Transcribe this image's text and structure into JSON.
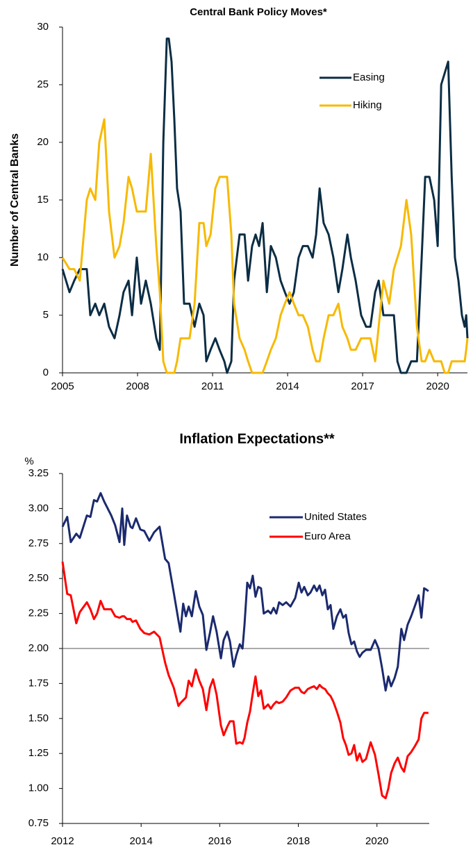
{
  "chart_data": [
    {
      "type": "line",
      "title": "Central Bank Policy Moves*",
      "ylabel": "Number of Central Banks",
      "x": [
        2005.0,
        2005.28,
        2005.47,
        2005.69,
        2005.97,
        2006.11,
        2006.31,
        2006.47,
        2006.67,
        2006.86,
        2007.08,
        2007.28,
        2007.44,
        2007.64,
        2007.78,
        2007.97,
        2008.14,
        2008.33,
        2008.53,
        2008.75,
        2008.89,
        2009.03,
        2009.17,
        2009.25,
        2009.36,
        2009.47,
        2009.58,
        2009.72,
        2009.86,
        2010.08,
        2010.28,
        2010.47,
        2010.64,
        2010.75,
        2010.92,
        2011.11,
        2011.28,
        2011.47,
        2011.58,
        2011.75,
        2011.86,
        2012.08,
        2012.28,
        2012.42,
        2012.58,
        2012.72,
        2012.86,
        2013.0,
        2013.17,
        2013.33,
        2013.53,
        2013.72,
        2013.89,
        2014.08,
        2014.25,
        2014.44,
        2014.61,
        2014.81,
        2015.0,
        2015.14,
        2015.28,
        2015.44,
        2015.64,
        2015.83,
        2016.03,
        2016.19,
        2016.39,
        2016.53,
        2016.72,
        2016.94,
        2017.14,
        2017.31,
        2017.5,
        2017.64,
        2017.83,
        2018.06,
        2018.25,
        2018.39,
        2018.53,
        2018.75,
        2018.94,
        2019.17,
        2019.36,
        2019.5,
        2019.67,
        2019.86,
        2020.0,
        2020.14,
        2020.28,
        2020.42,
        2020.56,
        2020.69,
        2020.83,
        2020.97,
        2021.08,
        2021.14,
        2021.19
      ],
      "series": [
        {
          "name": "Easing",
          "color": "#0b2d44",
          "values": [
            9,
            7,
            8,
            9,
            9,
            5,
            6,
            5,
            6,
            4,
            3,
            5,
            7,
            8,
            5,
            10,
            6,
            8,
            6,
            3,
            2,
            20,
            29,
            29,
            27,
            22,
            16,
            14,
            6,
            6,
            4,
            6,
            5,
            1,
            2,
            3,
            2,
            1,
            0,
            1,
            8,
            12,
            12,
            8,
            11,
            12,
            11,
            13,
            7,
            11,
            10,
            8,
            7,
            6,
            7,
            10,
            11,
            11,
            10,
            12,
            16,
            13,
            12,
            10,
            7,
            9,
            12,
            10,
            8,
            5,
            4,
            4,
            7,
            8,
            5,
            5,
            5,
            1,
            0,
            0,
            1,
            1,
            10,
            17,
            17,
            15,
            11,
            25,
            26,
            27,
            17,
            10,
            8,
            5,
            4,
            5,
            3
          ]
        },
        {
          "name": "Hiking",
          "color": "#f7b900",
          "values": [
            10,
            9,
            9,
            8,
            15,
            16,
            15,
            20,
            22,
            14,
            10,
            11,
            13,
            17,
            16,
            14,
            14,
            14,
            19,
            11,
            7,
            1,
            0,
            0,
            0,
            0,
            1,
            3,
            3,
            3,
            6,
            13,
            13,
            11,
            12,
            16,
            17,
            17,
            17,
            12,
            6,
            3,
            2,
            1,
            0,
            0,
            0,
            0,
            1,
            2,
            3,
            5,
            6,
            7,
            6,
            5,
            5,
            4,
            2,
            1,
            1,
            3,
            5,
            5,
            6,
            4,
            3,
            2,
            2,
            3,
            3,
            3,
            1,
            4,
            8,
            6,
            9,
            10,
            11,
            15,
            12,
            4,
            1,
            1,
            2,
            1,
            1,
            1,
            0,
            0,
            1,
            1,
            1,
            1,
            1,
            2,
            3
          ]
        }
      ],
      "xlim": [
        2005,
        2021.19
      ],
      "xticks": [
        2005,
        2008,
        2011,
        2014,
        2017,
        2020
      ],
      "ylim": [
        0,
        30
      ],
      "yticks": [
        0,
        5,
        10,
        15,
        20,
        25,
        30
      ],
      "legend": "upper right"
    },
    {
      "type": "line",
      "title": "Inflation Expectations**",
      "ylabel": "%",
      "x": [
        2012.0,
        2012.12,
        2012.21,
        2012.35,
        2012.44,
        2012.62,
        2012.71,
        2012.8,
        2012.88,
        2012.97,
        2013.06,
        2013.24,
        2013.34,
        2013.45,
        2013.52,
        2013.57,
        2013.64,
        2013.73,
        2013.78,
        2013.87,
        2013.98,
        2014.08,
        2014.21,
        2014.33,
        2014.47,
        2014.61,
        2014.7,
        2014.83,
        2014.95,
        2015.0,
        2015.07,
        2015.14,
        2015.21,
        2015.29,
        2015.39,
        2015.48,
        2015.57,
        2015.66,
        2015.75,
        2015.83,
        2015.92,
        2016.03,
        2016.1,
        2016.19,
        2016.26,
        2016.35,
        2016.42,
        2016.51,
        2016.58,
        2016.63,
        2016.7,
        2016.77,
        2016.84,
        2016.91,
        2016.98,
        2017.05,
        2017.12,
        2017.23,
        2017.3,
        2017.37,
        2017.44,
        2017.51,
        2017.6,
        2017.69,
        2017.8,
        2017.92,
        2018.01,
        2018.08,
        2018.15,
        2018.24,
        2018.31,
        2018.4,
        2018.47,
        2018.54,
        2018.61,
        2018.68,
        2018.75,
        2018.82,
        2018.89,
        2018.98,
        2019.07,
        2019.14,
        2019.21,
        2019.28,
        2019.35,
        2019.42,
        2019.49,
        2019.56,
        2019.63,
        2019.72,
        2019.84,
        2019.95,
        2020.04,
        2020.13,
        2020.22,
        2020.29,
        2020.36,
        2020.45,
        2020.53,
        2020.62,
        2020.69,
        2020.78,
        2020.87,
        2020.96,
        2021.06,
        2021.13,
        2021.2,
        2021.26,
        2021.31
      ],
      "series": [
        {
          "name": "United States",
          "color": "#1b2a6e",
          "values": [
            2.87,
            2.94,
            2.76,
            2.82,
            2.79,
            2.95,
            2.94,
            3.06,
            3.05,
            3.11,
            3.05,
            2.95,
            2.88,
            2.76,
            3.0,
            2.74,
            2.95,
            2.87,
            2.86,
            2.93,
            2.85,
            2.84,
            2.77,
            2.83,
            2.87,
            2.64,
            2.61,
            2.4,
            2.2,
            2.12,
            2.32,
            2.23,
            2.3,
            2.23,
            2.41,
            2.3,
            2.24,
            1.99,
            2.11,
            2.23,
            2.12,
            1.93,
            2.06,
            2.12,
            2.05,
            1.87,
            1.95,
            2.03,
            2.0,
            2.17,
            2.47,
            2.43,
            2.52,
            2.37,
            2.44,
            2.43,
            2.25,
            2.27,
            2.25,
            2.29,
            2.25,
            2.33,
            2.31,
            2.33,
            2.3,
            2.36,
            2.47,
            2.4,
            2.44,
            2.38,
            2.4,
            2.45,
            2.41,
            2.45,
            2.38,
            2.42,
            2.28,
            2.31,
            2.14,
            2.23,
            2.28,
            2.22,
            2.24,
            2.11,
            2.03,
            2.05,
            1.98,
            1.94,
            1.97,
            1.99,
            1.99,
            2.06,
            2.0,
            1.86,
            1.7,
            1.8,
            1.73,
            1.79,
            1.87,
            2.14,
            2.06,
            2.17,
            2.23,
            2.3,
            2.38,
            2.22,
            2.43,
            2.42,
            2.41
          ]
        },
        {
          "name": "Euro Area",
          "color": "#ff0000",
          "values": [
            2.62,
            2.39,
            2.38,
            2.18,
            2.26,
            2.33,
            2.28,
            2.21,
            2.25,
            2.34,
            2.28,
            2.28,
            2.23,
            2.22,
            2.23,
            2.23,
            2.21,
            2.21,
            2.19,
            2.2,
            2.14,
            2.11,
            2.1,
            2.12,
            2.08,
            1.9,
            1.81,
            1.72,
            1.59,
            1.61,
            1.63,
            1.65,
            1.77,
            1.73,
            1.85,
            1.77,
            1.71,
            1.56,
            1.72,
            1.78,
            1.67,
            1.45,
            1.38,
            1.44,
            1.48,
            1.48,
            1.32,
            1.33,
            1.32,
            1.36,
            1.47,
            1.55,
            1.68,
            1.8,
            1.66,
            1.7,
            1.57,
            1.6,
            1.57,
            1.6,
            1.62,
            1.61,
            1.62,
            1.65,
            1.7,
            1.72,
            1.72,
            1.69,
            1.68,
            1.71,
            1.72,
            1.73,
            1.71,
            1.74,
            1.72,
            1.71,
            1.68,
            1.66,
            1.62,
            1.55,
            1.47,
            1.36,
            1.31,
            1.24,
            1.25,
            1.31,
            1.2,
            1.25,
            1.19,
            1.21,
            1.33,
            1.24,
            1.1,
            0.95,
            0.93,
            1.0,
            1.11,
            1.18,
            1.22,
            1.15,
            1.12,
            1.23,
            1.26,
            1.3,
            1.35,
            1.5,
            1.54,
            1.54,
            1.54
          ]
        }
      ],
      "xlim": [
        2012,
        2021.33
      ],
      "xticks": [
        2012,
        2014,
        2016,
        2018,
        2020
      ],
      "ylim": [
        0.75,
        3.25
      ],
      "yticks": [
        0.75,
        {
          "value": 1,
          "label": "1.00"
        },
        1.25,
        {
          "value": 1.5,
          "label": "1.50"
        },
        1.75,
        {
          "value": 2,
          "label": "2.00"
        },
        2.25,
        {
          "value": 2.5,
          "label": "2.50"
        },
        2.75,
        {
          "value": 3,
          "label": "3.00"
        },
        3.25
      ],
      "reference_line": 2,
      "legend": "upper right"
    }
  ]
}
